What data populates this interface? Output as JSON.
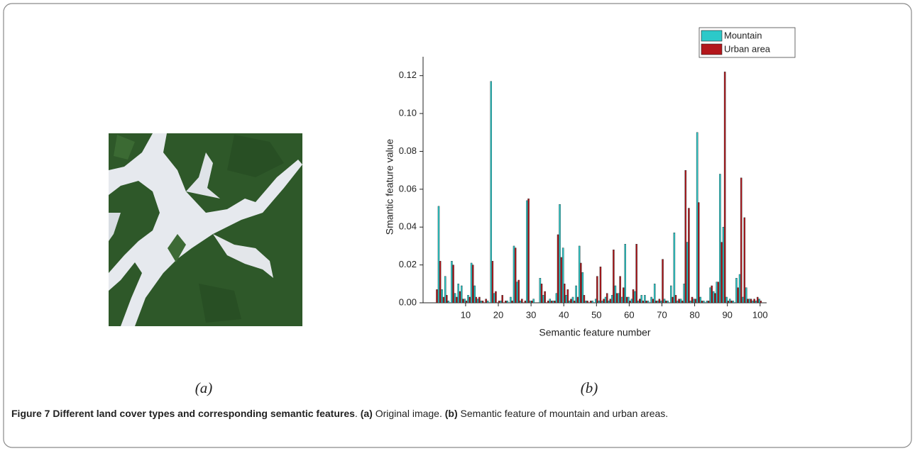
{
  "panel_labels": {
    "a": "(a)",
    "b": "(b)"
  },
  "caption": {
    "title": "Figure 7 Different land cover types and corresponding semantic features",
    "title_end": ".",
    "a_label": "(a)",
    "a_text": "Original image.",
    "b_label": "(b)",
    "b_text": "Semantic feature of mountain and urban areas."
  },
  "chart_data": {
    "type": "bar",
    "x_label": "Semantic feature number",
    "y_label": "Smantic feature value",
    "x": [
      1,
      2,
      3,
      4,
      5,
      6,
      7,
      8,
      9,
      10,
      11,
      12,
      13,
      14,
      15,
      16,
      17,
      18,
      19,
      20,
      21,
      22,
      23,
      24,
      25,
      26,
      27,
      28,
      29,
      30,
      31,
      32,
      33,
      34,
      35,
      36,
      37,
      38,
      39,
      40,
      41,
      42,
      43,
      44,
      45,
      46,
      47,
      48,
      49,
      50,
      51,
      52,
      53,
      54,
      55,
      56,
      57,
      58,
      59,
      60,
      61,
      62,
      63,
      64,
      65,
      66,
      67,
      68,
      69,
      70,
      71,
      72,
      73,
      74,
      75,
      76,
      77,
      78,
      79,
      80,
      81,
      82,
      83,
      84,
      85,
      86,
      87,
      88,
      89,
      90,
      91,
      92,
      93,
      94,
      95,
      96,
      97,
      98,
      99,
      100
    ],
    "series": [
      {
        "name": "Mountain",
        "color": "#2cc9c9",
        "values": [
          0,
          0.051,
          0.007,
          0.014,
          0.001,
          0.022,
          0.005,
          0.01,
          0.009,
          0.002,
          0.004,
          0.021,
          0.009,
          0.002,
          0.001,
          0,
          0.001,
          0.117,
          0.005,
          0,
          0.001,
          0,
          0.001,
          0.003,
          0.03,
          0.011,
          0.001,
          0,
          0.054,
          0.001,
          0.002,
          0,
          0.013,
          0.004,
          0,
          0.002,
          0.001,
          0.005,
          0.052,
          0.029,
          0.004,
          0.001,
          0.003,
          0.009,
          0.03,
          0.016,
          0.001,
          0,
          0.001,
          0.002,
          0.001,
          0.001,
          0.003,
          0.001,
          0.004,
          0.009,
          0.005,
          0.003,
          0.031,
          0.003,
          0.002,
          0.006,
          0.001,
          0.004,
          0.004,
          0.001,
          0.003,
          0.01,
          0.001,
          0.001,
          0.002,
          0.001,
          0.009,
          0.037,
          0.001,
          0.002,
          0.01,
          0.032,
          0.001,
          0.002,
          0.09,
          0.003,
          0.001,
          0.001,
          0.008,
          0.006,
          0.011,
          0.068,
          0.04,
          0.003,
          0.002,
          0.001,
          0.013,
          0.015,
          0.003,
          0.008,
          0.002,
          0.001,
          0.001,
          0.002
        ]
      },
      {
        "name": "Urban area",
        "color": "#b3161b",
        "values": [
          0.007,
          0.022,
          0.003,
          0.004,
          0,
          0.02,
          0.003,
          0.006,
          0.002,
          0.001,
          0.003,
          0.02,
          0.003,
          0.003,
          0.001,
          0.002,
          0,
          0.022,
          0.006,
          0.001,
          0.004,
          0.001,
          0,
          0.001,
          0.029,
          0.012,
          0.002,
          0.001,
          0.055,
          0.001,
          0,
          0,
          0.01,
          0.006,
          0.001,
          0.001,
          0.001,
          0.036,
          0.024,
          0.01,
          0.007,
          0.002,
          0.001,
          0.003,
          0.021,
          0.004,
          0.001,
          0.001,
          0,
          0.014,
          0.019,
          0.002,
          0.005,
          0.002,
          0.028,
          0.005,
          0.014,
          0.008,
          0.003,
          0.001,
          0.007,
          0.031,
          0.002,
          0.001,
          0.001,
          0,
          0.002,
          0.001,
          0.002,
          0.023,
          0.001,
          0,
          0.003,
          0.004,
          0.002,
          0.001,
          0.07,
          0.05,
          0.003,
          0.002,
          0.053,
          0.001,
          0,
          0.001,
          0.009,
          0.005,
          0.011,
          0.032,
          0.122,
          0.001,
          0.001,
          0,
          0.008,
          0.066,
          0.045,
          0.002,
          0.002,
          0.002,
          0.003,
          0.001
        ]
      }
    ],
    "xlim": [
      -3,
      102
    ],
    "ylim": [
      0,
      0.13
    ],
    "xticks": [
      10,
      20,
      30,
      40,
      50,
      60,
      70,
      80,
      90,
      100
    ],
    "yticks": [
      {
        "value": 0,
        "label": "0.00"
      },
      0.02,
      0.04,
      0.06,
      0.08,
      {
        "value": 0.1,
        "label": "0.10"
      },
      0.12
    ],
    "legend": "upper right"
  }
}
